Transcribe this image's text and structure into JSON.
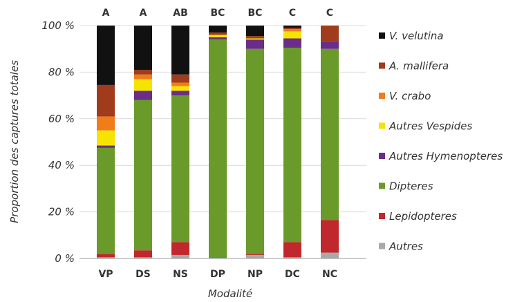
{
  "chart_data": {
    "type": "bar",
    "stacked": true,
    "categories": [
      "VP",
      "DS",
      "NS",
      "DP",
      "NP",
      "DC",
      "NC"
    ],
    "group_letters": [
      "A",
      "A",
      "AB",
      "BC",
      "BC",
      "C",
      "C"
    ],
    "ylabel": "Proportion des captures totales",
    "xlabel": "Modalité",
    "ylim": [
      0,
      100
    ],
    "yticks": [
      "0 %",
      "20 %",
      "40 %",
      "60 %",
      "80 %",
      "100 %"
    ],
    "legend_position": "right",
    "series": [
      {
        "name": "Autres",
        "color": "#a9a9a9",
        "values": [
          0.5,
          0.5,
          1.5,
          0.3,
          1.5,
          0.5,
          2.5
        ]
      },
      {
        "name": "Lepidopteres",
        "color": "#c0282d",
        "values": [
          1.5,
          3,
          5.5,
          0.2,
          0.5,
          6.5,
          14
        ]
      },
      {
        "name": "Dipteres",
        "color": "#6a9a2a",
        "values": [
          45.5,
          64.5,
          63,
          93.5,
          88,
          83.5,
          73.5
        ]
      },
      {
        "name": "Autres Hymenopteres",
        "color": "#6a2d8a",
        "values": [
          1,
          4,
          2,
          1,
          4,
          4,
          3
        ]
      },
      {
        "name": "Autres Vespides",
        "color": "#f5e300",
        "values": [
          6.5,
          5,
          2,
          1,
          0.5,
          3,
          0
        ]
      },
      {
        "name": "V. crabo",
        "color": "#f07c1a",
        "values": [
          6,
          2,
          1.5,
          0,
          0,
          1,
          0
        ]
      },
      {
        "name": "A. mallifera",
        "color": "#a03c1c",
        "values": [
          13.5,
          2,
          3.5,
          1,
          1,
          0.5,
          7
        ]
      },
      {
        "name": "V. velutina",
        "color": "#111111",
        "values": [
          25.5,
          19,
          21,
          3,
          4.5,
          1,
          0
        ]
      }
    ],
    "legend_order": [
      "V. velutina",
      "A. mallifera",
      "V. crabo",
      "Autres Vespides",
      "Autres Hymenopteres",
      "Dipteres",
      "Lepidopteres",
      "Autres"
    ]
  }
}
